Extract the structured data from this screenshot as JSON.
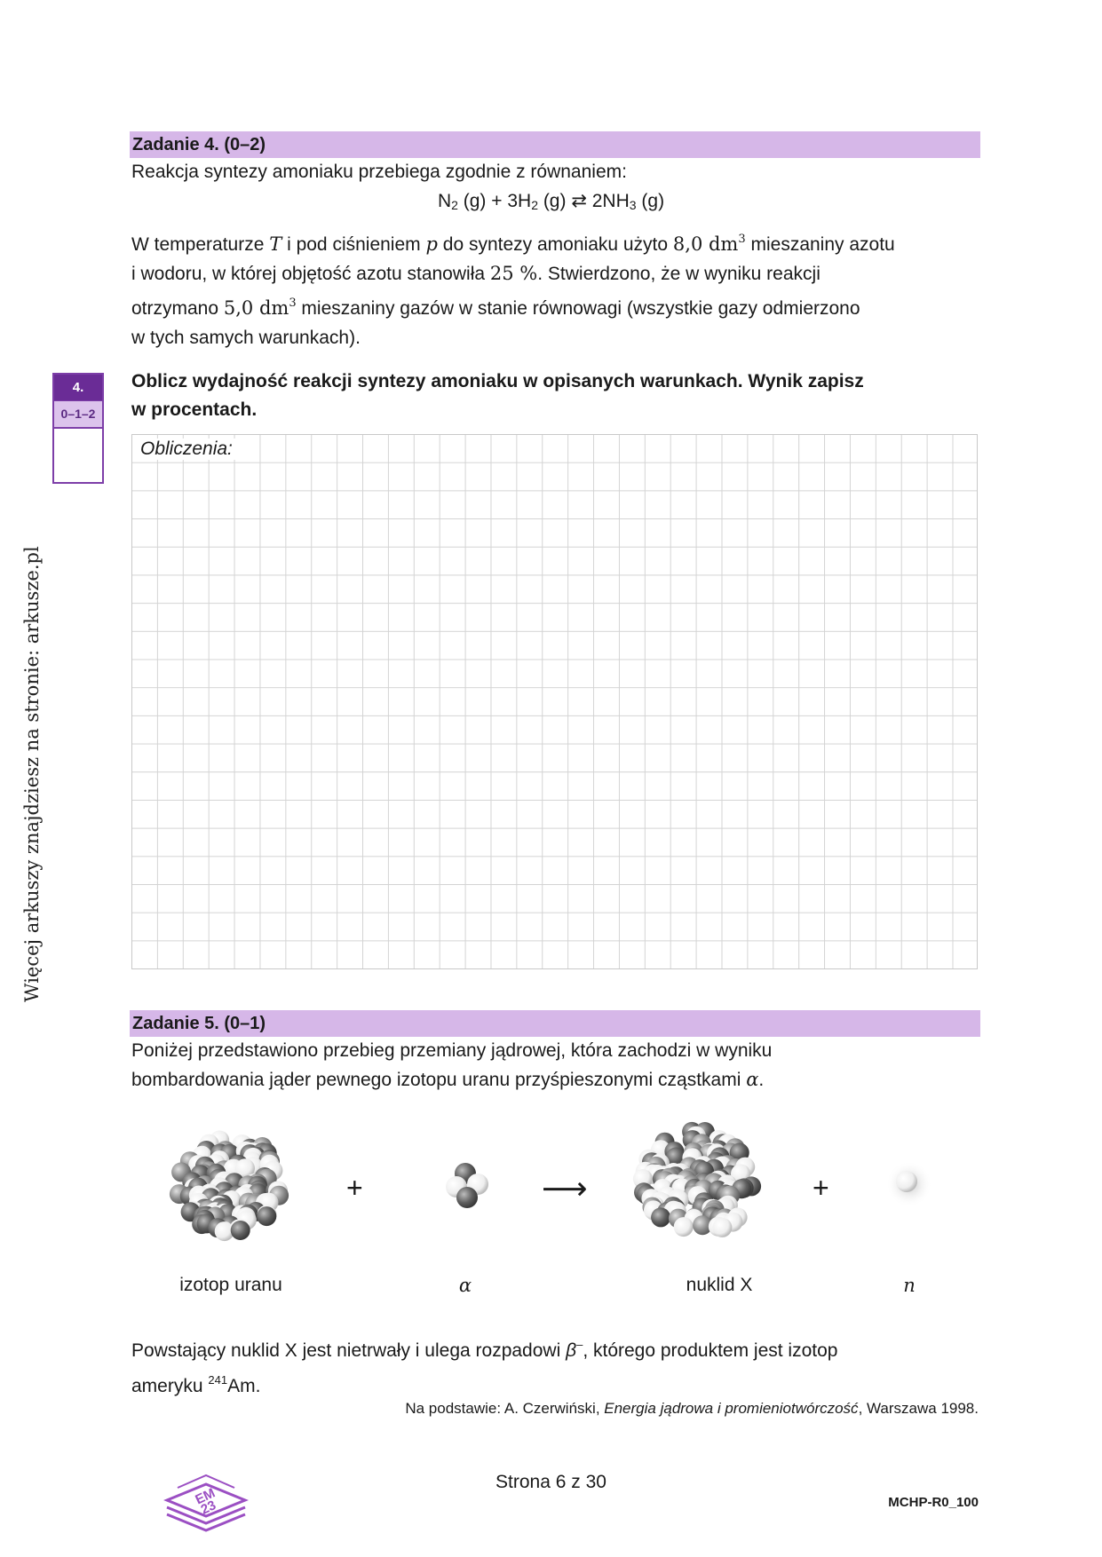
{
  "side_note": "Więcej arkuszy znajdziesz na stronie: arkusze.pl",
  "task4": {
    "header": "Zadanie 4. (0–2)",
    "intro": "Reakcja syntezy amoniaku przebiega zgodnie z równaniem:",
    "equation": {
      "n2": "N",
      "n2_sub": "2",
      "n2_state": " (g) + 3H",
      "h2_sub": "2",
      "h2_state": " (g) ⇄ 2NH",
      "nh3_sub": "3",
      "nh3_state": " (g)"
    },
    "para_parts": {
      "l1a": "W temperaturze ",
      "T": "T",
      "l1b": " i pod ciśnieniem ",
      "p": "p",
      "l1c": " do syntezy amoniaku użyto ",
      "v1": "8,0 dm",
      "v1_sup": "3",
      "l1d": " mieszaniny azotu",
      "l2a": "i wodoru, w której objętość azotu stanowiła ",
      "pct": "25 %",
      "l2b": ". Stwierdzono, że w wyniku reakcji",
      "l3a": "otrzymano ",
      "v2": "5,0 dm",
      "v2_sup": "3",
      "l3b": " mieszaniny gazów w stanie równowagi (wszystkie gazy odmierzono",
      "l4": "w tych samych warunkach)."
    },
    "score_number": "4.",
    "score_points": "0–1–2",
    "instruction_line1": "Oblicz wydajność reakcji syntezy amoniaku w opisanych warunkach. Wynik zapisz",
    "instruction_line2": "w procentach.",
    "grid_label": "Obliczenia:"
  },
  "task5": {
    "header": "Zadanie 5. (0–1)",
    "line1": "Poniżej przedstawiono przebieg przemiany jądrowej, która zachodzi w wyniku",
    "line2a": "bombardowania jąder pewnego izotopu uranu przyśpieszonymi cząstkami ",
    "alpha": "α",
    "line2b": ".",
    "labels": [
      "izotop uranu",
      "α",
      "nuklid X",
      "n"
    ],
    "plus": "+",
    "arrow": "⟶",
    "after1a": "Powstający nuklid X jest nietrwały i ulega rozpadowi ",
    "beta": "β",
    "beta_sup": "–",
    "after1b": ", którego produktem jest izotop",
    "after2a": "ameryku ",
    "mass": "241",
    "after2b": "Am.",
    "source_prefix": "Na podstawie: A. Czerwiński, ",
    "source_title": "Energia jądrowa i promieniotwórczość",
    "source_suffix": ", Warszawa 1998."
  },
  "footer": {
    "page": "Strona 6 z 30",
    "code": "MCHP-R0_100",
    "logo_text": "EM 23",
    "logo_color": "#9b4fc3"
  },
  "colors": {
    "header_bg": "#d6b7e8",
    "score_dark": "#6a2c96",
    "score_light": "#dcc3ec"
  }
}
